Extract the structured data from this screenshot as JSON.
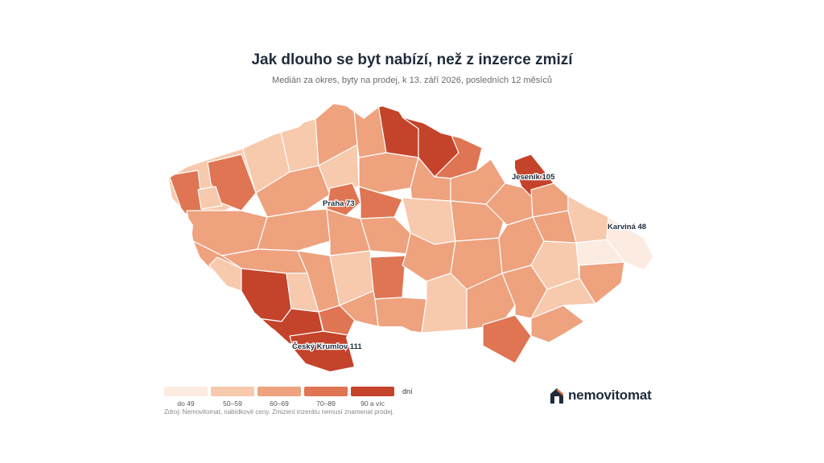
{
  "header": {
    "title": "Jak dlouho se byt nabízí, než z inzerce zmizí",
    "subtitle": "Medián za okres, byty na prodej, k 13. září 2026, posledních 12 měsíců"
  },
  "colors": {
    "bin0": "#fcebe1",
    "bin1": "#f7c9ad",
    "bin2": "#eea27e",
    "bin3": "#df7553",
    "bin4": "#c4432b"
  },
  "map": {
    "callouts": [
      {
        "id": "praha",
        "label": "Praha 73"
      },
      {
        "id": "jesenik",
        "label": "Jeseník 105"
      },
      {
        "id": "karvina",
        "label": "Karviná 48"
      },
      {
        "id": "krumlov",
        "label": "Český Krumlov 111"
      }
    ]
  },
  "legend": {
    "items": [
      {
        "label": "do 49"
      },
      {
        "label": "50–59"
      },
      {
        "label": "60–69"
      },
      {
        "label": "70–89"
      },
      {
        "label": "90 a víc"
      }
    ],
    "unit": "dní"
  },
  "source": "Zdroj: Nemovitomat, nabídkové ceny. Zmizení inzerátu nemusí znamenat prodej.",
  "brand": {
    "name": "nemovitomat",
    "icon": "house-logo-icon"
  }
}
